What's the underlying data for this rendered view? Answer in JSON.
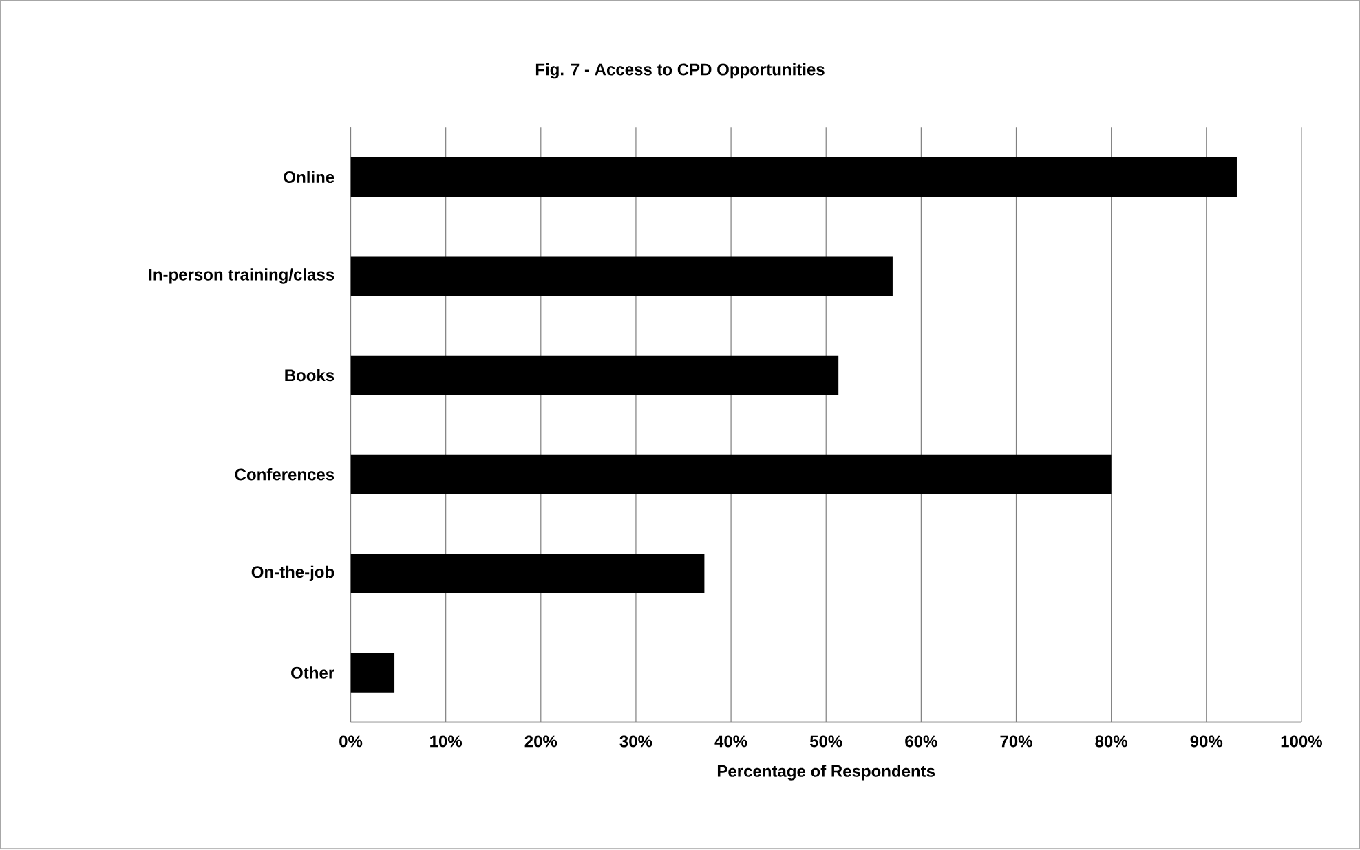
{
  "chart_data": {
    "type": "bar",
    "orientation": "horizontal",
    "title": "Fig. 7 -  Access to CPD Opportunities",
    "xlabel": "Percentage of Respondents",
    "categories": [
      "Online",
      "In-person training/class",
      "Books",
      "Conferences",
      "On-the-job",
      "Other"
    ],
    "values": [
      93.2,
      57,
      51.3,
      80,
      37.2,
      4.6
    ],
    "color": "#000000",
    "xlim": [
      0,
      100
    ],
    "xticks": [
      {
        "value": 0,
        "label": "0%"
      },
      {
        "value": 10,
        "label": "10%"
      },
      {
        "value": 20,
        "label": "20%"
      },
      {
        "value": 30,
        "label": "30%"
      },
      {
        "value": 40,
        "label": "40%"
      },
      {
        "value": 50,
        "label": "50%"
      },
      {
        "value": 60,
        "label": "60%"
      },
      {
        "value": 70,
        "label": "70%"
      },
      {
        "value": 80,
        "label": "80%"
      },
      {
        "value": 90,
        "label": "90%"
      },
      {
        "value": 100,
        "label": "100%"
      }
    ],
    "grid": "x"
  }
}
